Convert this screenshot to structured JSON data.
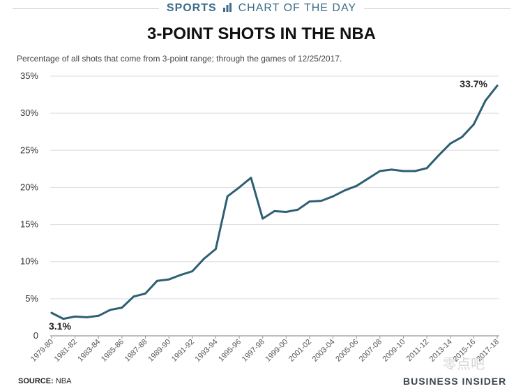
{
  "header": {
    "sports": "SPORTS",
    "chart_of_day": "CHART OF THE DAY"
  },
  "title": "3-POINT SHOTS IN THE NBA",
  "subtitle": "Percentage of all shots that come from 3-point range; through the games of 12/25/2017.",
  "source_label": "SOURCE:",
  "source_value": "NBA",
  "brand": "BUSINESS INSIDER",
  "watermark": "零点吧",
  "colors": {
    "line": "#2e5f73",
    "accent": "#3d6d8a",
    "grid": "#dddddd"
  },
  "chart_data": {
    "type": "line",
    "title": "3-POINT SHOTS IN THE NBA",
    "xlabel": "",
    "ylabel": "",
    "ylim": [
      0,
      35
    ],
    "y_ticks": [
      "0",
      "5%",
      "10%",
      "15%",
      "20%",
      "25%",
      "30%",
      "35%"
    ],
    "grid": true,
    "x_tick_labels": [
      "1979-80",
      "1981-82",
      "1983-84",
      "1985-86",
      "1987-88",
      "1989-90",
      "1991-92",
      "1993-94",
      "1995-96",
      "1997-98",
      "1999-00",
      "2001-02",
      "2003-04",
      "2005-06",
      "2007-08",
      "2009-10",
      "2011-12",
      "2013-14",
      "2015-16",
      "2017-18"
    ],
    "x": [
      "1979-80",
      "1980-81",
      "1981-82",
      "1982-83",
      "1983-84",
      "1984-85",
      "1985-86",
      "1986-87",
      "1987-88",
      "1988-89",
      "1989-90",
      "1990-91",
      "1991-92",
      "1992-93",
      "1993-94",
      "1994-95",
      "1995-96",
      "1996-97",
      "1997-98",
      "1998-99",
      "1999-00",
      "2000-01",
      "2001-02",
      "2002-03",
      "2003-04",
      "2004-05",
      "2005-06",
      "2006-07",
      "2007-08",
      "2008-09",
      "2009-10",
      "2010-11",
      "2011-12",
      "2012-13",
      "2013-14",
      "2014-15",
      "2015-16",
      "2016-17",
      "2017-18"
    ],
    "series": [
      {
        "values": [
          3.1,
          2.3,
          2.6,
          2.5,
          2.7,
          3.5,
          3.8,
          5.3,
          5.7,
          7.4,
          7.6,
          8.2,
          8.7,
          10.4,
          11.7,
          18.8,
          20.0,
          21.3,
          15.8,
          16.8,
          16.7,
          17.0,
          18.1,
          18.2,
          18.8,
          19.6,
          20.2,
          21.2,
          22.2,
          22.4,
          22.2,
          22.2,
          22.6,
          24.3,
          25.9,
          26.8,
          28.5,
          31.7,
          33.7
        ]
      }
    ],
    "annotations": [
      {
        "label": "3.1%",
        "x": "1979-80",
        "y": 3.1
      },
      {
        "label": "33.7%",
        "x": "2017-18",
        "y": 33.7
      }
    ]
  }
}
